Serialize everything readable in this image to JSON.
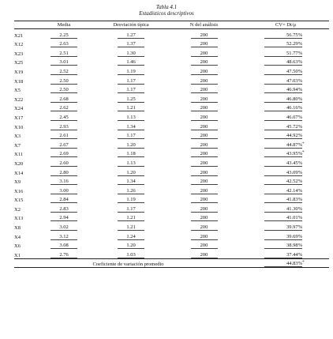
{
  "caption": {
    "number": "Tabla 4.1",
    "title": "Estadísticos descriptivos"
  },
  "headers": {
    "blank": "",
    "media": "Media",
    "desviacion": "Desviación típica",
    "n": "N del análisis",
    "cv": "CV= Dt/μ"
  },
  "rows": [
    {
      "label": "X21",
      "media": "2.25",
      "dt": "1.27",
      "n": "200",
      "cv": "56.75%",
      "mark": ""
    },
    {
      "label": "X12",
      "media": "2.63",
      "dt": "1.37",
      "n": "200",
      "cv": "52.29%",
      "mark": ""
    },
    {
      "label": "X23",
      "media": "2.51",
      "dt": "1.30",
      "n": "200",
      "cv": "51.77%",
      "mark": ""
    },
    {
      "label": "X25",
      "media": "3.01",
      "dt": "1.46",
      "n": "200",
      "cv": "48.63%",
      "mark": ""
    },
    {
      "label": "X19",
      "media": "2.52",
      "dt": "1.19",
      "n": "200",
      "cv": "47.50%",
      "mark": ""
    },
    {
      "label": "X18",
      "media": "2.50",
      "dt": "1.17",
      "n": "200",
      "cv": "47.03%",
      "mark": ""
    },
    {
      "label": "X5",
      "media": "2.50",
      "dt": "1.17",
      "n": "200",
      "cv": "46.94%",
      "mark": ""
    },
    {
      "label": "X22",
      "media": "2.68",
      "dt": "1.25",
      "n": "200",
      "cv": "46.80%",
      "mark": ""
    },
    {
      "label": "X24",
      "media": "2.62",
      "dt": "1.21",
      "n": "200",
      "cv": "46.16%",
      "mark": ""
    },
    {
      "label": "X17",
      "media": "2.45",
      "dt": "1.13",
      "n": "200",
      "cv": "46.07%",
      "mark": ""
    },
    {
      "label": "X10",
      "media": "2.93",
      "dt": "1.34",
      "n": "200",
      "cv": "45.72%",
      "mark": ""
    },
    {
      "label": "X3",
      "media": "2.61",
      "dt": "1.17",
      "n": "200",
      "cv": "44.92%",
      "mark": ""
    },
    {
      "label": "X7",
      "media": "2.67",
      "dt": "1.20",
      "n": "200",
      "cv": "44.87%",
      "mark": "*"
    },
    {
      "label": "X11",
      "media": "2.69",
      "dt": "1.18",
      "n": "200",
      "cv": "43.95%",
      "mark": "*"
    },
    {
      "label": "X20",
      "media": "2.60",
      "dt": "1.13",
      "n": "200",
      "cv": "43.45%",
      "mark": ""
    },
    {
      "label": "X14",
      "media": "2.80",
      "dt": "1.20",
      "n": "200",
      "cv": "43.09%",
      "mark": ""
    },
    {
      "label": "X9",
      "media": "3.16",
      "dt": "1.34",
      "n": "200",
      "cv": "42.52%",
      "mark": ""
    },
    {
      "label": "X16",
      "media": "3.00",
      "dt": "1.26",
      "n": "200",
      "cv": "42.14%",
      "mark": ""
    },
    {
      "label": "X15",
      "media": "2.84",
      "dt": "1.19",
      "n": "200",
      "cv": "41.83%",
      "mark": ""
    },
    {
      "label": "X2",
      "media": "2.83",
      "dt": "1.17",
      "n": "200",
      "cv": "41.30%",
      "mark": ""
    },
    {
      "label": "X13",
      "media": "2.94",
      "dt": "1.21",
      "n": "200",
      "cv": "41.01%",
      "mark": ""
    },
    {
      "label": "X8",
      "media": "3.02",
      "dt": "1.21",
      "n": "200",
      "cv": "39.97%",
      "mark": ""
    },
    {
      "label": "X4",
      "media": "3.12",
      "dt": "1.24",
      "n": "200",
      "cv": "39.69%",
      "mark": ""
    },
    {
      "label": "X6",
      "media": "3.08",
      "dt": "1.20",
      "n": "200",
      "cv": "38.98%",
      "mark": ""
    },
    {
      "label": "X1",
      "media": "2.76",
      "dt": "1.03",
      "n": "200",
      "cv": "37.44%",
      "mark": ""
    }
  ],
  "summary": {
    "label": "Coeficiente de variación promedio",
    "value": "44.83%",
    "mark": "*"
  }
}
